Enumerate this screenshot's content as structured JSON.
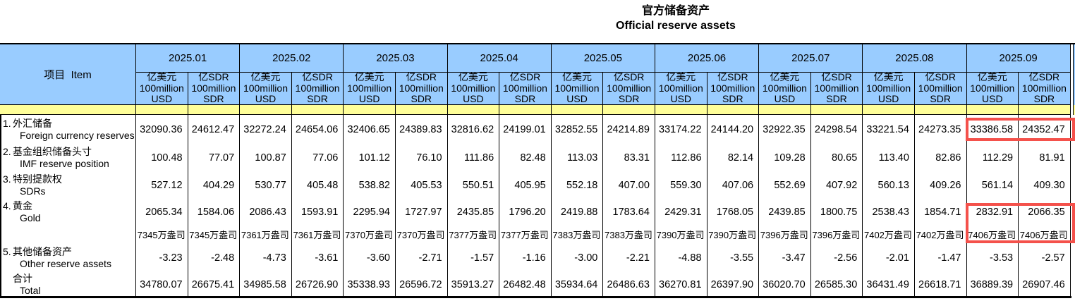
{
  "title": {
    "zh": "官方储备资产",
    "en": "Official reserve assets"
  },
  "table": {
    "item_header": "项目  Item",
    "months": [
      "2025.01",
      "2025.02",
      "2025.03",
      "2025.04",
      "2025.05",
      "2025.06",
      "2025.07",
      "2025.08",
      "2025.09"
    ],
    "unit_usd": [
      "亿美元",
      "100million",
      "USD"
    ],
    "unit_sdr": [
      "亿SDR",
      "100million",
      "SDR"
    ],
    "rows": [
      {
        "no": "1.",
        "zh": "外汇储备",
        "en": "Foreign currency reserves",
        "values": [
          "32090.36",
          "24612.47",
          "32272.24",
          "24654.06",
          "32406.65",
          "24389.83",
          "32816.62",
          "24199.01",
          "32852.55",
          "24214.89",
          "33174.22",
          "24144.20",
          "32922.35",
          "24298.54",
          "33221.54",
          "24273.35",
          "33386.58",
          "24352.47"
        ]
      },
      {
        "no": "2.",
        "zh": "基金组织储备头寸",
        "en": "IMF reserve position",
        "values": [
          "100.48",
          "77.07",
          "100.87",
          "77.06",
          "101.12",
          "76.10",
          "111.86",
          "82.48",
          "113.03",
          "83.31",
          "112.86",
          "82.14",
          "109.28",
          "80.65",
          "113.40",
          "82.86",
          "112.29",
          "81.91"
        ]
      },
      {
        "no": "3.",
        "zh": "特别提款权",
        "en": "SDRs",
        "values": [
          "527.12",
          "404.29",
          "530.77",
          "405.48",
          "538.82",
          "405.53",
          "550.51",
          "405.95",
          "552.18",
          "407.00",
          "559.30",
          "407.06",
          "552.69",
          "407.92",
          "560.13",
          "409.26",
          "561.14",
          "409.30"
        ]
      },
      {
        "no": "4.",
        "zh": "黄金",
        "en": "Gold",
        "values": [
          "2065.34",
          "1584.06",
          "2086.43",
          "1593.91",
          "2295.94",
          "1727.97",
          "2435.85",
          "1796.20",
          "2419.88",
          "1783.64",
          "2429.31",
          "1768.05",
          "2439.85",
          "1800.75",
          "2538.43",
          "1854.71",
          "2832.91",
          "2066.35"
        ]
      },
      {
        "no": "",
        "zh": "",
        "en": "",
        "values": [
          "7345万盎司",
          "7345万盎司",
          "7361万盎司",
          "7361万盎司",
          "7370万盎司",
          "7370万盎司",
          "7377万盎司",
          "7377万盎司",
          "7383万盎司",
          "7383万盎司",
          "7390万盎司",
          "7390万盎司",
          "7396万盎司",
          "7396万盎司",
          "7402万盎司",
          "7402万盎司",
          "7406万盎司",
          "7406万盎司"
        ]
      },
      {
        "no": "5.",
        "zh": "其他储备资产",
        "en": "Other reserve assets",
        "values": [
          "-3.23",
          "-2.48",
          "-4.73",
          "-3.61",
          "-3.60",
          "-2.71",
          "-1.57",
          "-1.16",
          "-3.00",
          "-2.21",
          "-4.88",
          "-3.55",
          "-3.47",
          "-2.56",
          "-2.01",
          "-1.47",
          "-3.53",
          "-2.57"
        ]
      },
      {
        "no": "",
        "zh": "合计",
        "en": "Total",
        "values": [
          "34780.07",
          "26675.41",
          "34985.58",
          "26726.90",
          "35338.93",
          "26596.72",
          "35913.27",
          "26482.48",
          "35934.64",
          "26486.63",
          "36270.81",
          "26397.90",
          "36020.70",
          "26585.30",
          "36431.49",
          "26618.71",
          "36889.39",
          "26907.46"
        ]
      }
    ],
    "colors": {
      "header_blue": "#99CCFF",
      "band_yellow": "#FFFF99",
      "border_black": "#000000"
    }
  },
  "highlight": {
    "color": "#F4514B",
    "boxes": [
      "foreign-currency-reserves-2025.09",
      "gold-and-ounces-2025.09"
    ]
  }
}
